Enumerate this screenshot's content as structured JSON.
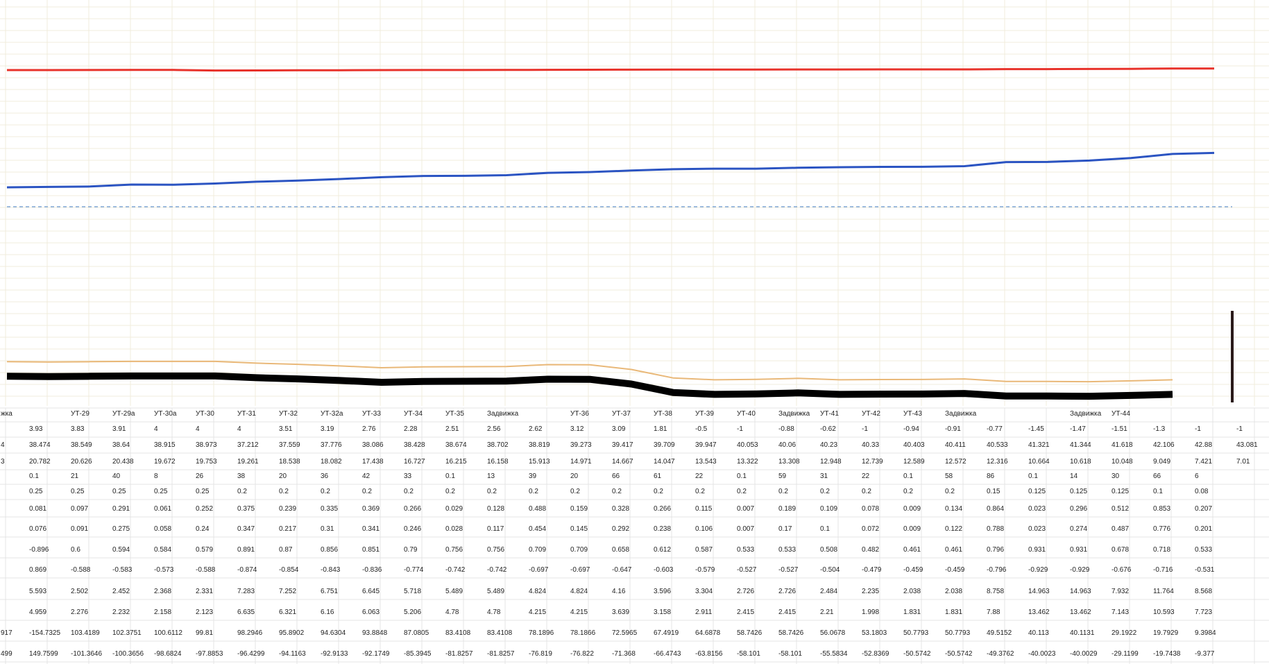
{
  "chart_data": {
    "type": "line",
    "title": "",
    "xlabel": "",
    "ylabel": "",
    "grid": true,
    "legend": "none",
    "colors": {
      "red": "#e8322a",
      "blue": "#2b54c2",
      "dashed": "#7fa6d6",
      "tan": "#e9b878",
      "black": "#000000",
      "marker": "#2a1a1a",
      "grid": "#f0ecdc",
      "rowline": "#e4e4e4"
    },
    "series": [
      {
        "key": "red",
        "values": [
          38.474,
          38.549,
          38.64,
          38.915,
          38.973,
          37.212,
          37.559,
          37.776,
          38.086,
          38.428,
          38.674,
          38.702,
          38.819,
          39.273,
          39.417,
          39.709,
          39.947,
          40.053,
          40.06,
          40.23,
          40.33,
          40.403,
          40.411,
          40.533,
          41.321,
          41.344,
          41.618,
          42.106,
          42.88,
          43.081
        ]
      },
      {
        "key": "blue",
        "values": [
          20.782,
          20.626,
          20.438,
          19.672,
          19.753,
          19.261,
          18.538,
          18.082,
          17.438,
          16.727,
          16.215,
          16.158,
          15.913,
          14.971,
          14.667,
          14.047,
          13.543,
          13.322,
          13.308,
          12.948,
          12.739,
          12.589,
          12.572,
          12.316,
          10.664,
          10.618,
          10.048,
          9.049,
          7.421,
          7.01
        ]
      }
    ],
    "headers": [
      "жка",
      "УТ-29",
      "УТ-29а",
      "УТ-30а",
      "УТ-30",
      "УТ-31",
      "УТ-32",
      "УТ-32а",
      "УТ-33",
      "УТ-34",
      "УТ-35",
      "Задвижка",
      "",
      "УТ-36",
      "УТ-37",
      "УТ-38",
      "УТ-39",
      "УТ-40",
      "Задвижка",
      "УТ-41",
      "УТ-42",
      "УТ-43",
      "Задвижка",
      "",
      "",
      "Задвижка",
      "УТ-44",
      "",
      "",
      ""
    ],
    "rows": [
      [
        "",
        "3.93",
        "3.83",
        "3.91",
        "4",
        "4",
        "4",
        "3.51",
        "3.19",
        "2.76",
        "2.28",
        "2.51",
        "2.56",
        "2.62",
        "3.12",
        "3.09",
        "1.81",
        "-0.5",
        "-1",
        "-0.88",
        "-0.62",
        "-1",
        "-0.94",
        "-0.91",
        "-0.77",
        "-1.45",
        "-1.47",
        "-1.51",
        "-1.3",
        "-1",
        "-1"
      ],
      [
        "4",
        "38.474",
        "38.549",
        "38.64",
        "38.915",
        "38.973",
        "37.212",
        "37.559",
        "37.776",
        "38.086",
        "38.428",
        "38.674",
        "38.702",
        "38.819",
        "39.273",
        "39.417",
        "39.709",
        "39.947",
        "40.053",
        "40.06",
        "40.23",
        "40.33",
        "40.403",
        "40.411",
        "40.533",
        "41.321",
        "41.344",
        "41.618",
        "42.106",
        "42.88",
        "43.081"
      ],
      [
        "3",
        "20.782",
        "20.626",
        "20.438",
        "19.672",
        "19.753",
        "19.261",
        "18.538",
        "18.082",
        "17.438",
        "16.727",
        "16.215",
        "16.158",
        "15.913",
        "14.971",
        "14.667",
        "14.047",
        "13.543",
        "13.322",
        "13.308",
        "12.948",
        "12.739",
        "12.589",
        "12.572",
        "12.316",
        "10.664",
        "10.618",
        "10.048",
        "9.049",
        "7.421",
        "7.01"
      ],
      [
        "",
        "0.1",
        "21",
        "40",
        "8",
        "26",
        "38",
        "20",
        "36",
        "42",
        "33",
        "0.1",
        "13",
        "39",
        "20",
        "66",
        "61",
        "22",
        "0.1",
        "59",
        "31",
        "22",
        "0.1",
        "58",
        "86",
        "0.1",
        "14",
        "30",
        "66",
        "6",
        ""
      ],
      [
        "",
        "0.25",
        "0.25",
        "0.25",
        "0.25",
        "0.25",
        "0.2",
        "0.2",
        "0.2",
        "0.2",
        "0.2",
        "0.2",
        "0.2",
        "0.2",
        "0.2",
        "0.2",
        "0.2",
        "0.2",
        "0.2",
        "0.2",
        "0.2",
        "0.2",
        "0.2",
        "0.2",
        "0.15",
        "0.125",
        "0.125",
        "0.125",
        "0.1",
        "0.08",
        ""
      ],
      [
        "",
        "0.081",
        "0.097",
        "0.291",
        "0.061",
        "0.252",
        "0.375",
        "0.239",
        "0.335",
        "0.369",
        "0.266",
        "0.029",
        "0.128",
        "0.488",
        "0.159",
        "0.328",
        "0.266",
        "0.115",
        "0.007",
        "0.189",
        "0.109",
        "0.078",
        "0.009",
        "0.134",
        "0.864",
        "0.023",
        "0.296",
        "0.512",
        "0.853",
        "0.207",
        ""
      ],
      [
        "",
        "0.076",
        "0.091",
        "0.275",
        "0.058",
        "0.24",
        "0.347",
        "0.217",
        "0.31",
        "0.341",
        "0.246",
        "0.028",
        "0.117",
        "0.454",
        "0.145",
        "0.292",
        "0.238",
        "0.106",
        "0.007",
        "0.17",
        "0.1",
        "0.072",
        "0.009",
        "0.122",
        "0.788",
        "0.023",
        "0.274",
        "0.487",
        "0.776",
        "0.201",
        ""
      ],
      [
        "",
        "-0.896",
        "0.6",
        "0.594",
        "0.584",
        "0.579",
        "0.891",
        "0.87",
        "0.856",
        "0.851",
        "0.79",
        "0.756",
        "0.756",
        "0.709",
        "0.709",
        "0.658",
        "0.612",
        "0.587",
        "0.533",
        "0.533",
        "0.508",
        "0.482",
        "0.461",
        "0.461",
        "0.796",
        "0.931",
        "0.931",
        "0.678",
        "0.718",
        "0.533",
        ""
      ],
      [
        "",
        "0.869",
        "-0.588",
        "-0.583",
        "-0.573",
        "-0.588",
        "-0.874",
        "-0.854",
        "-0.843",
        "-0.836",
        "-0.774",
        "-0.742",
        "-0.742",
        "-0.697",
        "-0.697",
        "-0.647",
        "-0.603",
        "-0.579",
        "-0.527",
        "-0.527",
        "-0.504",
        "-0.479",
        "-0.459",
        "-0.459",
        "-0.796",
        "-0.929",
        "-0.929",
        "-0.676",
        "-0.716",
        "-0.531",
        ""
      ],
      [
        "",
        "5.593",
        "2.502",
        "2.452",
        "2.368",
        "2.331",
        "7.283",
        "7.252",
        "6.751",
        "6.645",
        "5.718",
        "5.489",
        "5.489",
        "4.824",
        "4.824",
        "4.16",
        "3.596",
        "3.304",
        "2.726",
        "2.726",
        "2.484",
        "2.235",
        "2.038",
        "2.038",
        "8.758",
        "14.963",
        "14.963",
        "7.932",
        "11.764",
        "8.568",
        ""
      ],
      [
        "",
        "4.959",
        "2.276",
        "2.232",
        "2.158",
        "2.123",
        "6.635",
        "6.321",
        "6.16",
        "6.063",
        "5.206",
        "4.78",
        "4.78",
        "4.215",
        "4.215",
        "3.639",
        "3.158",
        "2.911",
        "2.415",
        "2.415",
        "2.21",
        "1.998",
        "1.831",
        "1.831",
        "7.88",
        "13.462",
        "13.462",
        "7.143",
        "10.593",
        "7.723",
        ""
      ],
      [
        "917",
        "-154.7325",
        "103.4189",
        "102.3751",
        "100.6112",
        "99.81",
        "98.2946",
        "95.8902",
        "94.6304",
        "93.8848",
        "87.0805",
        "83.4108",
        "83.4108",
        "78.1896",
        "78.1866",
        "72.5965",
        "67.4919",
        "64.6878",
        "58.7426",
        "58.7426",
        "56.0678",
        "53.1803",
        "50.7793",
        "50.7793",
        "49.5152",
        "40.113",
        "40.1131",
        "29.1922",
        "19.7929",
        "9.3984",
        ""
      ],
      [
        "499",
        "149.7599",
        "-101.3646",
        "-100.3656",
        "-98.6824",
        "-97.8853",
        "-96.4299",
        "-94.1163",
        "-92.9133",
        "-92.1749",
        "-85.3945",
        "-81.8257",
        "-81.8257",
        "-76.819",
        "-76.822",
        "-71.368",
        "-66.4743",
        "-63.8156",
        "-58.101",
        "-58.101",
        "-55.5834",
        "-52.8369",
        "-50.5742",
        "-50.5742",
        "-49.3762",
        "-40.0023",
        "-40.0029",
        "-29.1199",
        "-19.7438",
        "-9.377",
        ""
      ]
    ]
  }
}
